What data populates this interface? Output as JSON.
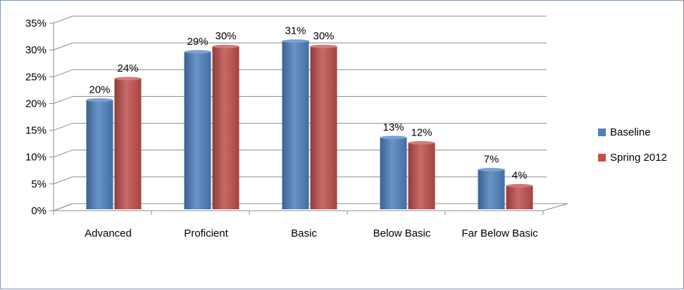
{
  "chart_data": {
    "type": "bar",
    "categories": [
      "Advanced",
      "Proficient",
      "Basic",
      "Below Basic",
      "Far Below Basic"
    ],
    "series": [
      {
        "name": "Baseline",
        "values": [
          20,
          29,
          31,
          13,
          7
        ],
        "labels": [
          "20%",
          "29%",
          "31%",
          "13%",
          "7%"
        ],
        "color": "#4f81bd"
      },
      {
        "name": "Spring 2012",
        "values": [
          24,
          30,
          30,
          12,
          4
        ],
        "labels": [
          "24%",
          "30%",
          "30%",
          "12%",
          "4%"
        ],
        "color": "#c0504d"
      }
    ],
    "ylim": [
      0,
      35
    ],
    "yticks": [
      "0%",
      "5%",
      "10%",
      "15%",
      "20%",
      "25%",
      "30%",
      "35%"
    ],
    "grid": true,
    "legend": "right",
    "style": "3d-clustered-column"
  }
}
